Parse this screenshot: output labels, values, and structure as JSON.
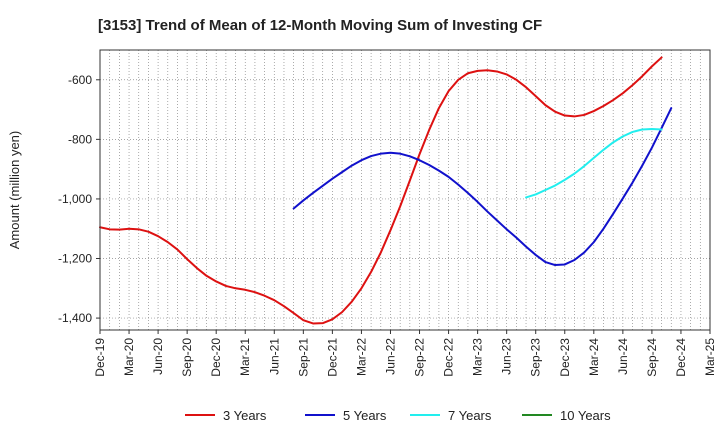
{
  "chart_data": {
    "type": "line",
    "title": "[3153]  Trend of Mean of 12-Month Moving Sum of Investing CF",
    "xlabel": "",
    "ylabel": "Amount (million yen)",
    "ylim": [
      -1440,
      -500
    ],
    "y_ticks": [
      -600,
      -800,
      -1000,
      -1200,
      -1400
    ],
    "y_tick_labels": [
      "-600",
      "-800",
      "-1,000",
      "-1,200",
      "-1,400"
    ],
    "x_tick_labels": [
      "Dec-19",
      "Mar-20",
      "Jun-20",
      "Sep-20",
      "Dec-20",
      "Mar-21",
      "Jun-21",
      "Sep-21",
      "Dec-21",
      "Mar-22",
      "Jun-22",
      "Sep-22",
      "Dec-22",
      "Mar-23",
      "Jun-23",
      "Sep-23",
      "Dec-23",
      "Mar-24",
      "Jun-24",
      "Sep-24",
      "Dec-24",
      "Mar-25"
    ],
    "x_start": "2019-12",
    "grid": true,
    "legend_position": "bottom",
    "series": [
      {
        "name": "3 Years",
        "color": "#dd1111",
        "start": "2019-12",
        "values": [
          -1095,
          -1102,
          -1103,
          -1100,
          -1102,
          -1110,
          -1125,
          -1145,
          -1170,
          -1202,
          -1232,
          -1258,
          -1277,
          -1292,
          -1300,
          -1305,
          -1313,
          -1325,
          -1340,
          -1360,
          -1383,
          -1407,
          -1418,
          -1417,
          -1404,
          -1380,
          -1345,
          -1300,
          -1245,
          -1180,
          -1105,
          -1025,
          -938,
          -850,
          -768,
          -695,
          -638,
          -600,
          -578,
          -570,
          -568,
          -572,
          -582,
          -600,
          -625,
          -655,
          -685,
          -707,
          -720,
          -723,
          -718,
          -705,
          -688,
          -668,
          -645,
          -618,
          -588,
          -555,
          -525
        ]
      },
      {
        "name": "5 Years",
        "color": "#1111cc",
        "start": "2021-08",
        "values": [
          -1032,
          -1005,
          -980,
          -956,
          -932,
          -910,
          -888,
          -870,
          -856,
          -848,
          -845,
          -848,
          -857,
          -870,
          -886,
          -905,
          -926,
          -952,
          -980,
          -1010,
          -1042,
          -1072,
          -1102,
          -1130,
          -1160,
          -1188,
          -1212,
          -1222,
          -1220,
          -1205,
          -1180,
          -1145,
          -1100,
          -1050,
          -998,
          -945,
          -888,
          -828,
          -762,
          -695
        ]
      },
      {
        "name": "7 Years",
        "color": "#22eeee",
        "start": "2023-08",
        "values": [
          -995,
          -985,
          -970,
          -955,
          -936,
          -915,
          -890,
          -862,
          -835,
          -810,
          -790,
          -775,
          -767,
          -765,
          -767
        ]
      },
      {
        "name": "10 Years",
        "color": "#228822",
        "start": "2019-12",
        "values": []
      }
    ]
  }
}
